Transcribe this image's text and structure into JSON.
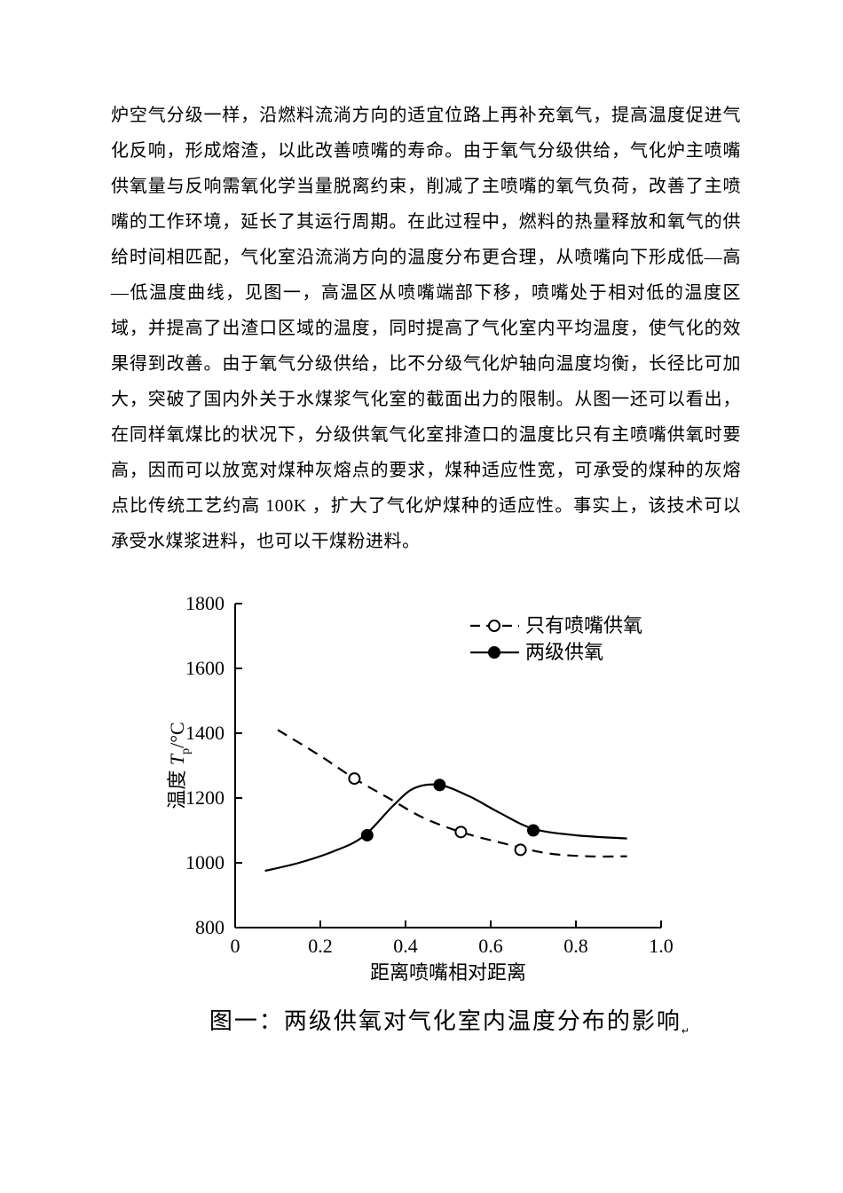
{
  "paragraph": "炉空气分级一样，沿燃料流淌方向的适宜位路上再补充氧气，提高温度促进气化反响，形成熔渣，以此改善喷嘴的寿命。由于氧气分级供给，气化炉主喷嘴供氧量与反响需氧化学当量脱离约束，削减了主喷嘴的氧气负荷，改善了主喷嘴的工作环境，延长了其运行周期。在此过程中，燃料的热量释放和氧气的供给时间相匹配，气化室沿流淌方向的温度分布更合理，从喷嘴向下形成低—高—低温度曲线，见图一，高温区从喷嘴端部下移，喷嘴处于相对低的温度区域，并提高了出渣口区域的温度，同时提高了气化室内平均温度，使气化的效果得到改善。由于氧气分级供给，比不分级气化炉轴向温度均衡，长径比可加大，突破了国内外关于水煤浆气化室的截面出力的限制。从图一还可以看出，在同样氧煤比的状况下，分级供氧气化室排渣口的温度比只有主喷嘴供氧时要高，因而可以放宽对煤种灰熔点的要求，煤种适应性宽，可承受的煤种的灰熔点比传统工艺约高 100K ，扩大了气化炉煤种的适应性。事实上，该技术可以承受水煤浆进料，也可以干煤粉进料。",
  "chart": {
    "type": "line",
    "xlim": [
      0,
      1.0
    ],
    "ylim": [
      800,
      1800
    ],
    "xticks": [
      0,
      0.2,
      0.4,
      0.6,
      0.8,
      1.0
    ],
    "yticks": [
      800,
      1000,
      1200,
      1400,
      1600,
      1800
    ],
    "xlabel": "距离喷嘴相对距离",
    "ylabel": "温度 Tₚ/℃",
    "ylabel_plain": "温度",
    "ylabel_symbol": "Tₚ",
    "ylabel_unit": "/°C",
    "background_color": "#ffffff",
    "axis_color": "#000000",
    "series": [
      {
        "name": "只有喷嘴供氧",
        "style": "dashed",
        "marker": "open-circle",
        "color": "#000000",
        "points_line": [
          [
            0.1,
            1410
          ],
          [
            0.2,
            1330
          ],
          [
            0.28,
            1260
          ],
          [
            0.36,
            1200
          ],
          [
            0.44,
            1140
          ],
          [
            0.53,
            1095
          ],
          [
            0.63,
            1060
          ],
          [
            0.73,
            1030
          ],
          [
            0.83,
            1020
          ],
          [
            0.92,
            1020
          ]
        ],
        "points_marker": [
          [
            0.28,
            1260
          ],
          [
            0.53,
            1095
          ],
          [
            0.67,
            1040
          ]
        ]
      },
      {
        "name": "两级供氧",
        "style": "solid",
        "marker": "filled-circle",
        "color": "#000000",
        "points_line": [
          [
            0.07,
            975
          ],
          [
            0.15,
            1000
          ],
          [
            0.23,
            1035
          ],
          [
            0.3,
            1080
          ],
          [
            0.37,
            1175
          ],
          [
            0.42,
            1230
          ],
          [
            0.48,
            1240
          ],
          [
            0.55,
            1205
          ],
          [
            0.62,
            1155
          ],
          [
            0.7,
            1105
          ],
          [
            0.8,
            1085
          ],
          [
            0.92,
            1075
          ]
        ],
        "points_marker": [
          [
            0.31,
            1085
          ],
          [
            0.48,
            1240
          ],
          [
            0.7,
            1100
          ]
        ]
      }
    ],
    "legend": {
      "position": "top-right",
      "items": [
        {
          "label": "只有喷嘴供氧",
          "style": "dashed",
          "marker": "open-circle"
        },
        {
          "label": "两级供氧",
          "style": "solid",
          "marker": "filled-circle"
        }
      ]
    },
    "caption": "图一：两级供氧对气化室内温度分布的影响"
  }
}
